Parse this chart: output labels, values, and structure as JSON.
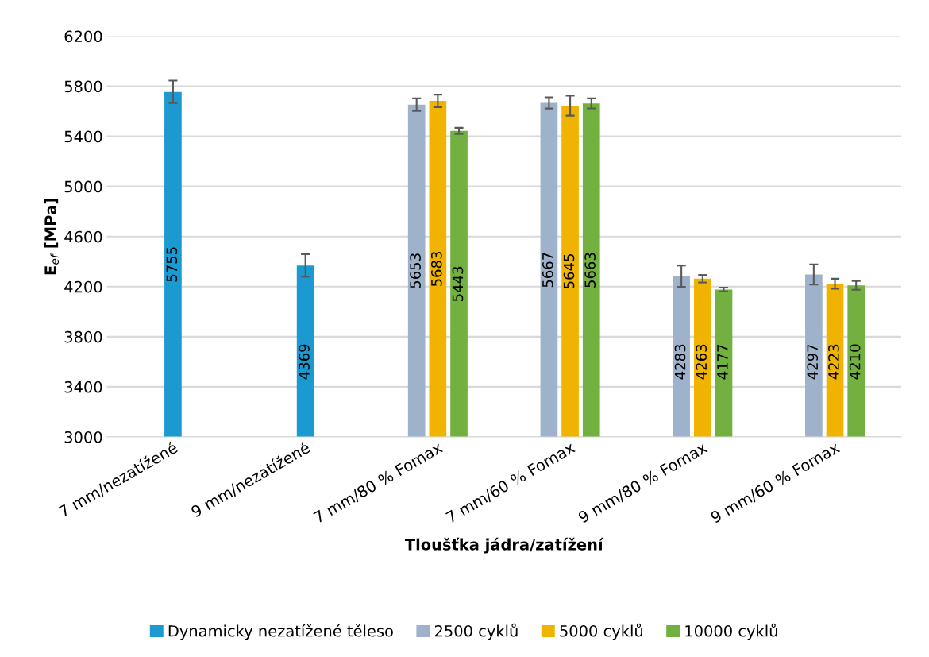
{
  "chart_data": {
    "type": "bar",
    "xlabel": "Tloušťka jádra/zatížení",
    "ylabel": "E$_{ef}$ [MPa]",
    "categories": [
      "7 mm/nezatížené",
      "9 mm/nezatížené",
      "7 mm/80 % Fomax",
      "7 mm/60 % Fomax",
      "9 mm/80 % Fomax",
      "9 mm/60 % Fomax"
    ],
    "series": [
      {
        "name": "Dynamicky nezatížené těleso",
        "color": "#1a9ad0",
        "values": [
          5755,
          4369,
          null,
          null,
          null,
          null
        ],
        "errors": [
          90,
          90,
          null,
          null,
          null,
          null
        ]
      },
      {
        "name": "2500 cyklů",
        "color": "#9fb2cc",
        "values": [
          null,
          null,
          5653,
          5667,
          4283,
          4297
        ],
        "errors": [
          null,
          null,
          50,
          45,
          85,
          80
        ]
      },
      {
        "name": "5000 cyklů",
        "color": "#f0b400",
        "values": [
          null,
          null,
          5683,
          5645,
          4263,
          4223
        ],
        "errors": [
          null,
          null,
          50,
          80,
          30,
          40
        ]
      },
      {
        "name": "10000 cyklů",
        "color": "#72b040",
        "values": [
          null,
          null,
          5443,
          5663,
          4177,
          4210
        ],
        "errors": [
          null,
          null,
          25,
          40,
          15,
          35
        ]
      }
    ],
    "ylim": [
      3000,
      6200
    ],
    "yticks": [
      3000,
      3400,
      3800,
      4200,
      4600,
      5000,
      5400,
      5800,
      6200
    ],
    "grid": "y",
    "legend": "bottom",
    "data_labels": true
  }
}
